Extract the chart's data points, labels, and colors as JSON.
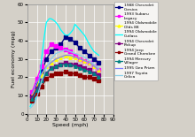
{
  "xlabel": "Speed (mph)",
  "ylabel": "Fuel economy (mpg)",
  "xlim": [
    0,
    90
  ],
  "ylim": [
    0,
    60
  ],
  "xticks": [
    0,
    10,
    20,
    30,
    40,
    50,
    60,
    70,
    80,
    90
  ],
  "yticks": [
    0,
    10,
    20,
    30,
    40,
    50,
    60
  ],
  "bg_color": "#D4D0C8",
  "plot_bg": "#D4D0C8",
  "series": [
    {
      "label": "1988 Chevrolet\nCorsica",
      "color": "#000080",
      "marker": "s",
      "markersize": 2.5,
      "speed": [
        5,
        10,
        15,
        20,
        25,
        30,
        35,
        40,
        45,
        50,
        55,
        60,
        65,
        70,
        75
      ],
      "mpg": [
        10,
        16,
        23,
        30,
        34,
        36,
        38,
        42,
        41,
        39,
        36,
        34,
        32,
        30,
        28
      ]
    },
    {
      "label": "1993 Subaru\nLegacy",
      "color": "#FF00FF",
      "marker": "s",
      "markersize": 2.5,
      "speed": [
        5,
        10,
        15,
        20,
        25,
        30,
        35,
        40,
        45,
        50,
        55,
        60,
        65,
        70,
        75
      ],
      "mpg": [
        12,
        19,
        26,
        34,
        38,
        37,
        36,
        35,
        34,
        32,
        30,
        29,
        28,
        26,
        24
      ]
    },
    {
      "label": "1994 Oldsmobile\nOlds 88",
      "color": "#FFFF00",
      "marker": "^",
      "markersize": 2.5,
      "speed": [
        5,
        10,
        15,
        20,
        25,
        30,
        35,
        40,
        45,
        50,
        55,
        60,
        65,
        70,
        75
      ],
      "mpg": [
        10,
        15,
        21,
        26,
        28,
        30,
        31,
        32,
        31,
        31,
        30,
        29,
        28,
        26,
        24
      ]
    },
    {
      "label": "1994 Oldsmobile\nCutlass",
      "color": "#00FFFF",
      "marker": null,
      "markersize": 0,
      "speed": [
        3,
        5,
        8,
        10,
        13,
        15,
        18,
        20,
        23,
        25,
        28,
        30,
        33,
        35,
        38,
        40,
        43,
        45,
        48,
        50,
        55,
        60,
        65,
        70,
        75
      ],
      "mpg": [
        4,
        6,
        8,
        10,
        18,
        30,
        43,
        50,
        52,
        52,
        51,
        50,
        48,
        46,
        44,
        43,
        43,
        44,
        46,
        49,
        46,
        43,
        38,
        34,
        32
      ]
    },
    {
      "label": "1994 Chevrolet\nPickup",
      "color": "#800080",
      "marker": "s",
      "markersize": 2.5,
      "speed": [
        5,
        10,
        15,
        20,
        25,
        30,
        35,
        40,
        45,
        50,
        55,
        60,
        65,
        70,
        75
      ],
      "mpg": [
        9,
        14,
        18,
        22,
        25,
        26,
        27,
        28,
        27,
        27,
        26,
        25,
        24,
        22,
        21
      ]
    },
    {
      "label": "1994 Jeep\nGrand Cherokee",
      "color": "#8B0000",
      "marker": "s",
      "markersize": 2.5,
      "speed": [
        5,
        10,
        15,
        20,
        25,
        30,
        35,
        40,
        45,
        50,
        55,
        60,
        65,
        70,
        75
      ],
      "mpg": [
        7,
        11,
        15,
        19,
        21,
        22,
        22,
        23,
        22,
        22,
        21,
        20,
        20,
        19,
        18
      ]
    },
    {
      "label": "1994 Mercury\nVillager",
      "color": "#008080",
      "marker": "^",
      "markersize": 2.5,
      "speed": [
        5,
        10,
        15,
        20,
        25,
        30,
        35,
        40,
        45,
        50,
        55,
        60,
        65,
        70,
        75
      ],
      "mpg": [
        8,
        13,
        18,
        22,
        25,
        26,
        27,
        27,
        27,
        26,
        25,
        24,
        23,
        22,
        20
      ]
    },
    {
      "label": "1995 Geo Prizm",
      "color": "#8080FF",
      "marker": null,
      "markersize": 0,
      "speed": [
        5,
        10,
        15,
        20,
        25,
        30,
        35,
        40,
        45,
        50,
        55,
        60,
        65,
        70,
        75
      ],
      "mpg": [
        11,
        17,
        22,
        26,
        28,
        30,
        31,
        32,
        32,
        31,
        30,
        29,
        28,
        26,
        24
      ]
    },
    {
      "label": "1997 Toyota\nCelica",
      "color": "#87CEEB",
      "marker": null,
      "markersize": 0,
      "speed": [
        3,
        5,
        8,
        10,
        13,
        15,
        18,
        20,
        25,
        30,
        35,
        40,
        45,
        50,
        55,
        60,
        65,
        70,
        75
      ],
      "mpg": [
        3,
        4,
        6,
        9,
        14,
        18,
        22,
        25,
        30,
        33,
        34,
        35,
        34,
        33,
        32,
        31,
        29,
        27,
        25
      ]
    }
  ]
}
